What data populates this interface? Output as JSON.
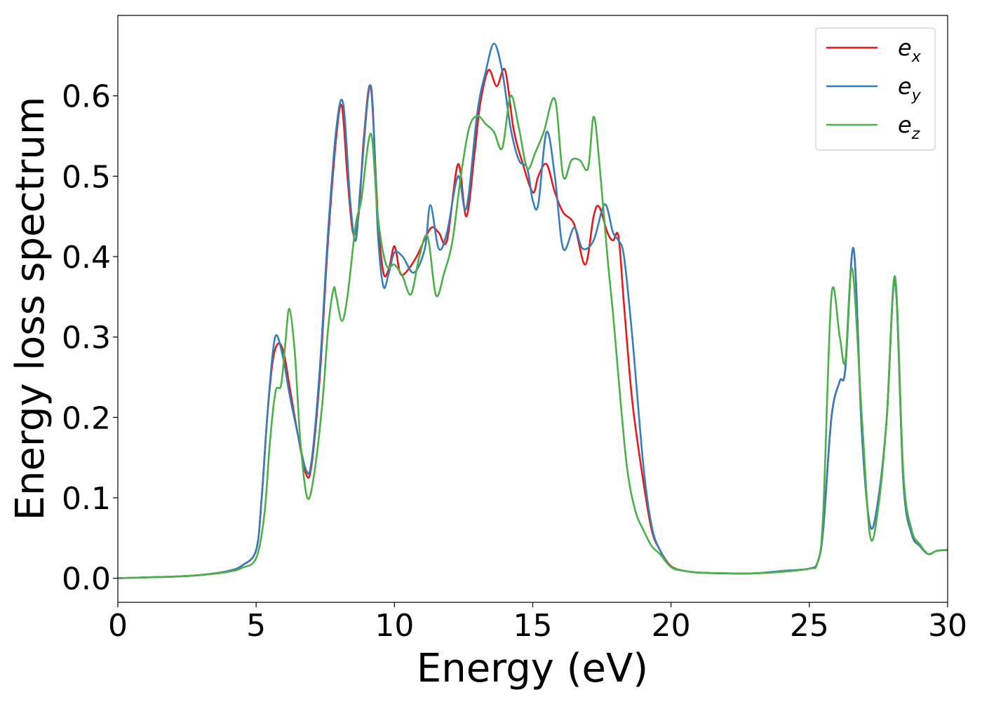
{
  "chart_data": {
    "type": "line",
    "title": "",
    "xlabel": "Energy (eV)",
    "ylabel": "Energy loss spectrum",
    "xlim": [
      0,
      30
    ],
    "ylim": [
      -0.03,
      0.7
    ],
    "xticks": [
      "0",
      "5",
      "10",
      "15",
      "20",
      "25",
      "30"
    ],
    "yticks": [
      "0.0",
      "0.1",
      "0.2",
      "0.3",
      "0.4",
      "0.5",
      "0.6"
    ],
    "grid": false,
    "legend_position": "top-right",
    "series": [
      {
        "name": "e_x",
        "base": "e",
        "sub": "x",
        "color": "#e41a1c",
        "x": [
          0,
          1,
          2,
          3,
          4,
          4.5,
          5,
          5.2,
          5.4,
          5.6,
          5.8,
          6,
          6.2,
          6.5,
          6.8,
          7,
          7.3,
          7.6,
          7.9,
          8.1,
          8.3,
          8.5,
          8.7,
          8.9,
          9.15,
          9.4,
          9.6,
          9.8,
          10,
          10.2,
          10.4,
          10.8,
          11.3,
          11.6,
          11.9,
          12.3,
          12.6,
          12.9,
          13.1,
          13.4,
          13.7,
          14,
          14.3,
          14.6,
          15,
          15.2,
          15.5,
          15.8,
          16.1,
          16.5,
          16.9,
          17.2,
          17.4,
          17.7,
          17.9,
          18.1,
          18.3,
          18.6,
          19,
          19.3,
          19.6,
          20,
          20.5,
          21,
          22,
          23,
          24,
          25,
          25.3,
          25.5,
          25.8,
          26.1,
          26.3,
          26.6,
          26.9,
          27.2,
          27.5,
          27.8,
          28.1,
          28.4,
          28.7,
          29,
          29.3,
          29.6,
          30
        ],
        "y": [
          0.0,
          0.001,
          0.002,
          0.004,
          0.009,
          0.016,
          0.035,
          0.1,
          0.2,
          0.27,
          0.292,
          0.28,
          0.24,
          0.18,
          0.13,
          0.14,
          0.25,
          0.42,
          0.55,
          0.587,
          0.5,
          0.43,
          0.45,
          0.55,
          0.61,
          0.45,
          0.38,
          0.385,
          0.413,
          0.38,
          0.38,
          0.4,
          0.435,
          0.43,
          0.42,
          0.515,
          0.45,
          0.53,
          0.59,
          0.632,
          0.612,
          0.632,
          0.56,
          0.52,
          0.48,
          0.5,
          0.515,
          0.48,
          0.455,
          0.44,
          0.39,
          0.45,
          0.462,
          0.43,
          0.42,
          0.425,
          0.34,
          0.22,
          0.12,
          0.06,
          0.035,
          0.015,
          0.009,
          0.007,
          0.006,
          0.006,
          0.008,
          0.012,
          0.02,
          0.06,
          0.2,
          0.245,
          0.26,
          0.41,
          0.18,
          0.065,
          0.1,
          0.2,
          0.37,
          0.12,
          0.055,
          0.04,
          0.03,
          0.034,
          0.035
        ]
      },
      {
        "name": "e_y",
        "base": "e",
        "sub": "y",
        "color": "#377eb8",
        "x": [
          0,
          1,
          2,
          3,
          4,
          4.5,
          5,
          5.2,
          5.4,
          5.6,
          5.75,
          6,
          6.2,
          6.5,
          6.8,
          7,
          7.3,
          7.6,
          7.9,
          8.15,
          8.4,
          8.6,
          8.8,
          9.15,
          9.4,
          9.6,
          9.8,
          10,
          10.3,
          10.7,
          11.1,
          11.3,
          11.6,
          11.9,
          12.3,
          12.6,
          13,
          13.3,
          13.6,
          13.9,
          14.2,
          14.5,
          14.8,
          15,
          15.2,
          15.5,
          15.8,
          16.1,
          16.5,
          16.8,
          17.2,
          17.6,
          17.9,
          18.1,
          18.3,
          18.6,
          19,
          19.3,
          19.6,
          20,
          20.5,
          21,
          22,
          23,
          24,
          25,
          25.3,
          25.5,
          25.8,
          26.1,
          26.3,
          26.6,
          26.9,
          27.2,
          27.5,
          27.8,
          28.1,
          28.4,
          28.7,
          29,
          29.3,
          29.6,
          30
        ],
        "y": [
          0.0,
          0.001,
          0.002,
          0.004,
          0.009,
          0.016,
          0.035,
          0.1,
          0.2,
          0.28,
          0.302,
          0.27,
          0.23,
          0.18,
          0.135,
          0.145,
          0.26,
          0.43,
          0.56,
          0.59,
          0.47,
          0.42,
          0.5,
          0.612,
          0.43,
          0.363,
          0.38,
          0.405,
          0.4,
          0.38,
          0.41,
          0.464,
          0.41,
          0.43,
          0.5,
          0.46,
          0.58,
          0.63,
          0.665,
          0.63,
          0.56,
          0.52,
          0.51,
          0.47,
          0.465,
          0.555,
          0.5,
          0.41,
          0.436,
          0.41,
          0.42,
          0.465,
          0.43,
          0.42,
          0.4,
          0.3,
          0.14,
          0.065,
          0.035,
          0.014,
          0.009,
          0.007,
          0.006,
          0.006,
          0.009,
          0.012,
          0.02,
          0.06,
          0.2,
          0.245,
          0.26,
          0.41,
          0.18,
          0.065,
          0.1,
          0.2,
          0.37,
          0.12,
          0.055,
          0.04,
          0.03,
          0.034,
          0.035
        ]
      },
      {
        "name": "e_z",
        "base": "e",
        "sub": "z",
        "color": "#4daf4a",
        "x": [
          0,
          1,
          2,
          3,
          4,
          4.5,
          5,
          5.3,
          5.5,
          5.7,
          5.9,
          6.05,
          6.2,
          6.4,
          6.6,
          6.85,
          7.1,
          7.4,
          7.6,
          7.8,
          7.9,
          8.1,
          8.3,
          8.6,
          8.8,
          9.15,
          9.4,
          9.7,
          10,
          10.3,
          10.6,
          10.9,
          11.2,
          11.5,
          11.8,
          12.1,
          12.4,
          12.7,
          13,
          13.3,
          13.6,
          13.9,
          14.2,
          14.5,
          14.8,
          15.1,
          15.4,
          15.8,
          16.1,
          16.4,
          16.7,
          17,
          17.2,
          17.4,
          17.7,
          17.9,
          18.1,
          18.4,
          18.7,
          19,
          19.3,
          19.6,
          20,
          20.5,
          21,
          22,
          23,
          24,
          25,
          25.3,
          25.5,
          25.8,
          26.1,
          26.3,
          26.55,
          26.9,
          27.2,
          27.5,
          27.8,
          28.1,
          28.4,
          28.7,
          29,
          29.3,
          29.6,
          30
        ],
        "y": [
          0.0,
          0.001,
          0.002,
          0.004,
          0.008,
          0.013,
          0.025,
          0.08,
          0.17,
          0.232,
          0.24,
          0.29,
          0.335,
          0.28,
          0.17,
          0.1,
          0.13,
          0.22,
          0.31,
          0.36,
          0.35,
          0.32,
          0.35,
          0.44,
          0.47,
          0.553,
          0.45,
          0.39,
          0.39,
          0.375,
          0.353,
          0.4,
          0.425,
          0.352,
          0.38,
          0.42,
          0.5,
          0.56,
          0.575,
          0.565,
          0.555,
          0.535,
          0.6,
          0.56,
          0.51,
          0.53,
          0.555,
          0.596,
          0.5,
          0.52,
          0.52,
          0.51,
          0.574,
          0.52,
          0.4,
          0.33,
          0.25,
          0.14,
          0.085,
          0.06,
          0.04,
          0.03,
          0.014,
          0.009,
          0.007,
          0.006,
          0.006,
          0.008,
          0.012,
          0.02,
          0.08,
          0.352,
          0.3,
          0.27,
          0.385,
          0.2,
          0.052,
          0.09,
          0.2,
          0.375,
          0.13,
          0.06,
          0.042,
          0.03,
          0.034,
          0.035
        ]
      }
    ]
  }
}
